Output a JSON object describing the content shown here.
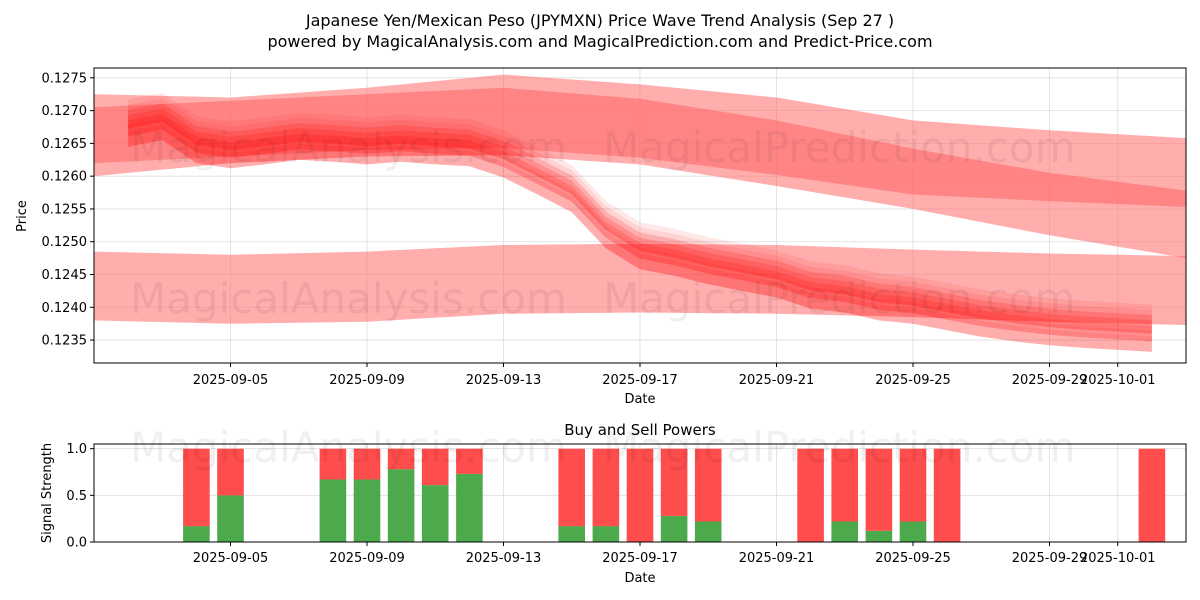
{
  "title_line1": "Japanese Yen/Mexican Peso (JPYMXN) Price Wave Trend Analysis (Sep 27 )",
  "title_line2": "powered by MagicalAnalysis.com and MagicalPrediction.com and Predict-Price.com",
  "watermarks": [
    "MagicalAnalysis.com",
    "MagicalPrediction.com"
  ],
  "colors": {
    "wave": "#ff0000",
    "band": "#ff6a6a",
    "buy": "#4caa4c",
    "sell": "#ff4c4c",
    "grid": "#dddddd"
  },
  "chart_data": [
    {
      "type": "area",
      "title": "",
      "xlabel": "Date",
      "ylabel": "Price",
      "grid": true,
      "xlim": [
        "2025-09-01",
        "2025-10-03"
      ],
      "ylim": [
        0.12315,
        0.12765
      ],
      "x_ticks": [
        "2025-09-05",
        "2025-09-09",
        "2025-09-13",
        "2025-09-17",
        "2025-09-21",
        "2025-09-25",
        "2025-09-29",
        "2025-10-01"
      ],
      "y_ticks": [
        "0.1235",
        "0.1240",
        "0.1245",
        "0.1250",
        "0.1255",
        "0.1260",
        "0.1265",
        "0.1270",
        "0.1275"
      ],
      "bands": [
        {
          "name": "upper band outer",
          "x": [
            "2025-09-01",
            "2025-09-05",
            "2025-09-09",
            "2025-09-13",
            "2025-09-17",
            "2025-09-21",
            "2025-09-25",
            "2025-09-29",
            "2025-10-03"
          ],
          "upper": [
            0.12725,
            0.1272,
            0.12735,
            0.12755,
            0.1274,
            0.1272,
            0.12685,
            0.1267,
            0.12658
          ],
          "lower": [
            0.126,
            0.1262,
            0.1263,
            0.12632,
            0.12618,
            0.12585,
            0.1255,
            0.1251,
            0.12475
          ],
          "opacity": 0.55
        },
        {
          "name": "upper band inner",
          "x": [
            "2025-09-01",
            "2025-09-05",
            "2025-09-09",
            "2025-09-13",
            "2025-09-17",
            "2025-09-21",
            "2025-09-25",
            "2025-09-29",
            "2025-10-03"
          ],
          "upper": [
            0.12705,
            0.12715,
            0.12725,
            0.12735,
            0.12718,
            0.12685,
            0.12642,
            0.12605,
            0.12578
          ],
          "lower": [
            0.1262,
            0.1263,
            0.1264,
            0.12643,
            0.12628,
            0.12602,
            0.12572,
            0.12562,
            0.12553
          ],
          "opacity": 0.6
        },
        {
          "name": "lower band",
          "x": [
            "2025-09-01",
            "2025-09-05",
            "2025-09-09",
            "2025-09-13",
            "2025-09-17",
            "2025-09-21",
            "2025-09-25",
            "2025-09-29",
            "2025-10-03"
          ],
          "upper": [
            0.12485,
            0.1248,
            0.12485,
            0.12495,
            0.12497,
            0.12495,
            0.12488,
            0.12482,
            0.12478
          ],
          "lower": [
            0.1238,
            0.12375,
            0.12378,
            0.1239,
            0.12392,
            0.1239,
            0.12385,
            0.12378,
            0.12373
          ],
          "opacity": 0.55
        }
      ],
      "wave": {
        "name": "price waves",
        "x": [
          "2025-09-02",
          "2025-09-03",
          "2025-09-04",
          "2025-09-05",
          "2025-09-06",
          "2025-09-07",
          "2025-09-08",
          "2025-09-09",
          "2025-09-10",
          "2025-09-11",
          "2025-09-12",
          "2025-09-13",
          "2025-09-14",
          "2025-09-15",
          "2025-09-16",
          "2025-09-17",
          "2025-09-18",
          "2025-09-19",
          "2025-09-20",
          "2025-09-21",
          "2025-09-22",
          "2025-09-23",
          "2025-09-24",
          "2025-09-25",
          "2025-09-26",
          "2025-09-27",
          "2025-09-28",
          "2025-09-29",
          "2025-09-30",
          "2025-10-01",
          "2025-10-02"
        ],
        "y": [
          0.12675,
          0.12685,
          0.1265,
          0.12642,
          0.12648,
          0.12655,
          0.12652,
          0.12648,
          0.12652,
          0.12648,
          0.12645,
          0.12628,
          0.12602,
          0.12575,
          0.1252,
          0.12488,
          0.12478,
          0.12465,
          0.12455,
          0.12445,
          0.12428,
          0.12422,
          0.1241,
          0.12405,
          0.12395,
          0.12385,
          0.12378,
          0.12372,
          0.12368,
          0.12365,
          0.12362
        ],
        "spread": 8e-05,
        "layers": 12
      }
    },
    {
      "type": "bar",
      "title": "Buy and Sell Powers",
      "xlabel": "Date",
      "ylabel": "Signal Strength",
      "grid": true,
      "xlim": [
        "2025-09-01",
        "2025-10-03"
      ],
      "ylim": [
        0,
        1.05
      ],
      "x_ticks": [
        "2025-09-05",
        "2025-09-09",
        "2025-09-13",
        "2025-09-17",
        "2025-09-21",
        "2025-09-25",
        "2025-09-29",
        "2025-10-01"
      ],
      "y_ticks": [
        "0.0",
        "0.5",
        "1.0"
      ],
      "categories": [
        "2025-09-04",
        "2025-09-05",
        "2025-09-08",
        "2025-09-09",
        "2025-09-10",
        "2025-09-11",
        "2025-09-12",
        "2025-09-15",
        "2025-09-16",
        "2025-09-17",
        "2025-09-18",
        "2025-09-19",
        "2025-09-22",
        "2025-09-23",
        "2025-09-24",
        "2025-09-25",
        "2025-09-26",
        "2025-10-02"
      ],
      "series": [
        {
          "name": "Buy",
          "values": [
            0.17,
            0.5,
            0.67,
            0.67,
            0.78,
            0.61,
            0.73,
            0.17,
            0.17,
            0.0,
            0.28,
            0.22,
            0.0,
            0.22,
            0.12,
            0.22,
            0.0,
            0.0
          ]
        },
        {
          "name": "Sell",
          "values": [
            0.83,
            0.5,
            0.33,
            0.33,
            0.22,
            0.39,
            0.27,
            0.83,
            0.83,
            1.0,
            0.72,
            0.78,
            1.0,
            0.78,
            0.88,
            0.78,
            1.0,
            1.0
          ]
        }
      ]
    }
  ]
}
